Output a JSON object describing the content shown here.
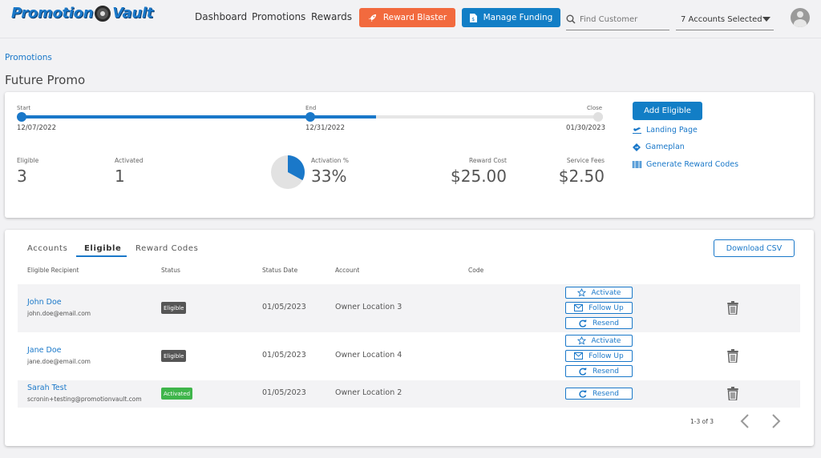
{
  "header": {
    "logo_left": "Promotion",
    "logo_right": "Vault",
    "nav": [
      "Dashboard",
      "Promotions",
      "Rewards"
    ],
    "reward_blaster": "Reward Blaster",
    "manage_funding": "Manage Funding",
    "search_placeholder": "Find Customer",
    "accounts_selected": "7 Accounts Selected"
  },
  "breadcrumb": "Promotions",
  "page_title": "Future Promo",
  "timeline": {
    "start_label": "Start",
    "start_date": "12/07/2022",
    "end_label": "End",
    "end_date": "12/31/2022",
    "close_label": "Close",
    "close_date": "01/30/2023",
    "progress_fraction": 0.61
  },
  "stats": {
    "eligible_label": "Eligible",
    "eligible": "3",
    "activated_label": "Activated",
    "activated": "1",
    "activation_label": "Activation %",
    "activation": "33%",
    "activation_fraction": 0.33,
    "reward_cost_label": "Reward Cost",
    "reward_cost": "$25.00",
    "service_fees_label": "Service Fees",
    "service_fees": "$2.50"
  },
  "actions": {
    "add_eligible": "Add Eligible",
    "landing_page": "Landing Page",
    "gameplan": "Gameplan",
    "generate_codes": "Generate Reward Codes"
  },
  "tabs": [
    "Accounts",
    "Eligible",
    "Reward Codes"
  ],
  "download_csv": "Download CSV",
  "columns": [
    "Eligible Recipient",
    "Status",
    "Status Date",
    "Account",
    "Code"
  ],
  "rows": [
    {
      "name": "John Doe",
      "email": "john.doe@email.com",
      "status": "Eligible",
      "date": "01/05/2023",
      "account": "Owner Location 3"
    },
    {
      "name": "Jane Doe",
      "email": "jane.doe@email.com",
      "status": "Eligible",
      "date": "01/05/2023",
      "account": "Owner Location 4"
    },
    {
      "name": "Sarah Test",
      "email": "scronin+testing@promotionvault.com",
      "status": "Activated",
      "date": "01/05/2023",
      "account": "Owner Location 2"
    }
  ],
  "row_actions": {
    "activate": "Activate",
    "follow_up": "Follow Up",
    "resend": "Resend"
  },
  "pagination": "1-3 of 3",
  "colors": {
    "primary": "#1a78c9",
    "orange": "#f26a3e",
    "green": "#3fb54b"
  }
}
